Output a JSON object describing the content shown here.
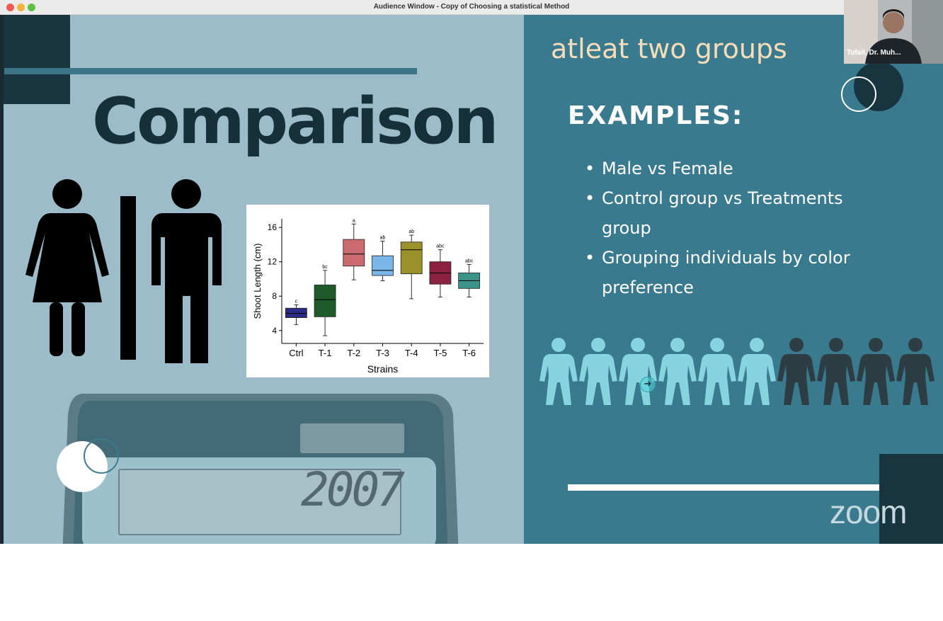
{
  "window": {
    "title": "Audience Window - Copy of Choosing a statistical Method"
  },
  "slide": {
    "left": {
      "heading": "Comparison",
      "calculator_display": "2007"
    },
    "right": {
      "subtitle": "atleat two groups",
      "examples_heading": "EXAMPLES:",
      "bullets": [
        "Male vs Female",
        "Control group vs Treatments group",
        "Grouping individuals by color preference"
      ],
      "people_icons": {
        "light_count": 6,
        "dark_count": 4,
        "light_color": "#86d4e0",
        "dark_color": "#2d3d44"
      },
      "logo": "zoom"
    }
  },
  "video_tile": {
    "participant_name": "Tufail, Dr. Muh..."
  },
  "colors": {
    "left_bg": "#9bbcc8",
    "right_bg": "#3a7a8e",
    "dark_navy": "#17343f",
    "accent_cream": "#f6dcb9"
  },
  "chart_data": {
    "type": "boxplot",
    "xlabel": "Strains",
    "ylabel": "Shoot Length (cm)",
    "ylim": [
      2.5,
      17
    ],
    "yticks": [
      4,
      8,
      12,
      16
    ],
    "categories": [
      "Ctrl",
      "T-1",
      "T-2",
      "T-3",
      "T-4",
      "T-5",
      "T-6"
    ],
    "boxes": [
      {
        "label": "Ctrl",
        "whisker_low": 4.7,
        "q1": 5.5,
        "median": 6.0,
        "q3": 6.6,
        "whisker_high": 7.0,
        "letters": "c",
        "color": "#2b2a84"
      },
      {
        "label": "T-1",
        "whisker_low": 3.4,
        "q1": 5.6,
        "median": 7.6,
        "q3": 9.3,
        "whisker_high": 11.0,
        "letters": "bc",
        "color": "#1f5a2a"
      },
      {
        "label": "T-2",
        "whisker_low": 9.9,
        "q1": 11.5,
        "median": 12.9,
        "q3": 14.6,
        "whisker_high": 16.4,
        "letters": "a",
        "color": "#cc6b6f"
      },
      {
        "label": "T-3",
        "whisker_low": 9.8,
        "q1": 10.4,
        "median": 11.0,
        "q3": 12.7,
        "whisker_high": 14.4,
        "letters": "ab",
        "color": "#7ab6e8"
      },
      {
        "label": "T-4",
        "whisker_low": 7.7,
        "q1": 10.6,
        "median": 13.4,
        "q3": 14.3,
        "whisker_high": 15.1,
        "letters": "ab",
        "color": "#9a912a"
      },
      {
        "label": "T-5",
        "whisker_low": 7.9,
        "q1": 9.4,
        "median": 10.7,
        "q3": 12.0,
        "whisker_high": 13.4,
        "letters": "abc",
        "color": "#8a2143"
      },
      {
        "label": "T-6",
        "whisker_low": 7.9,
        "q1": 8.9,
        "median": 9.8,
        "q3": 10.7,
        "whisker_high": 11.7,
        "letters": "abc",
        "color": "#3b948a"
      }
    ]
  }
}
